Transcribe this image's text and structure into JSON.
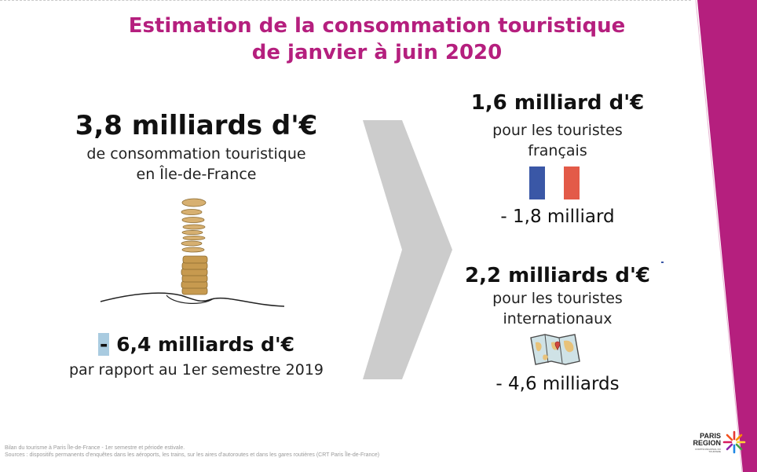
{
  "title": {
    "line1": "Estimation de la consommation touristique",
    "line2": "de janvier à juin 2020"
  },
  "left": {
    "amount": "3,8 milliards d'€",
    "desc_line1": "de consommation touristique",
    "desc_line2": "en Île-de-France",
    "delta_sign": "-",
    "delta_value": " 6,4 milliards d'€",
    "compare": "par rapport au 1er semestre 2019"
  },
  "french": {
    "amount": "1,6 milliard d'€",
    "desc_line1": "pour les touristes",
    "desc_line2": "français",
    "delta": "- 1,8 milliard"
  },
  "international": {
    "amount": "2,2 milliards d'€",
    "desc_line1": "pour les touristes",
    "desc_line2": "internationaux",
    "delta": "- 4,6 milliards"
  },
  "footer": {
    "line1": "Bilan du tourisme à Paris Île-de-France - 1er semestre et période estivale.",
    "line2": "Sources : dispositifs permanents d'enquêtes dans les aéroports, les trains, sur les aires d'autoroutes et dans les gares routières (CRT Paris Île-de-France)"
  },
  "logo": {
    "line1": "PARIS",
    "line2": "REGION",
    "small": "COMITÉ RÉGIONAL DU TOURISME"
  },
  "icons": {
    "flag": "flag-france-icon",
    "map": "world-map-icon",
    "coins": "coin-stack-icon",
    "arrow": "chevron-right-icon"
  },
  "colors": {
    "accent": "#b51f7e",
    "chevron": "#cccccc",
    "highlight": "#a9cbe0",
    "flag_blue": "#3a57a6",
    "flag_red": "#e35a48"
  }
}
